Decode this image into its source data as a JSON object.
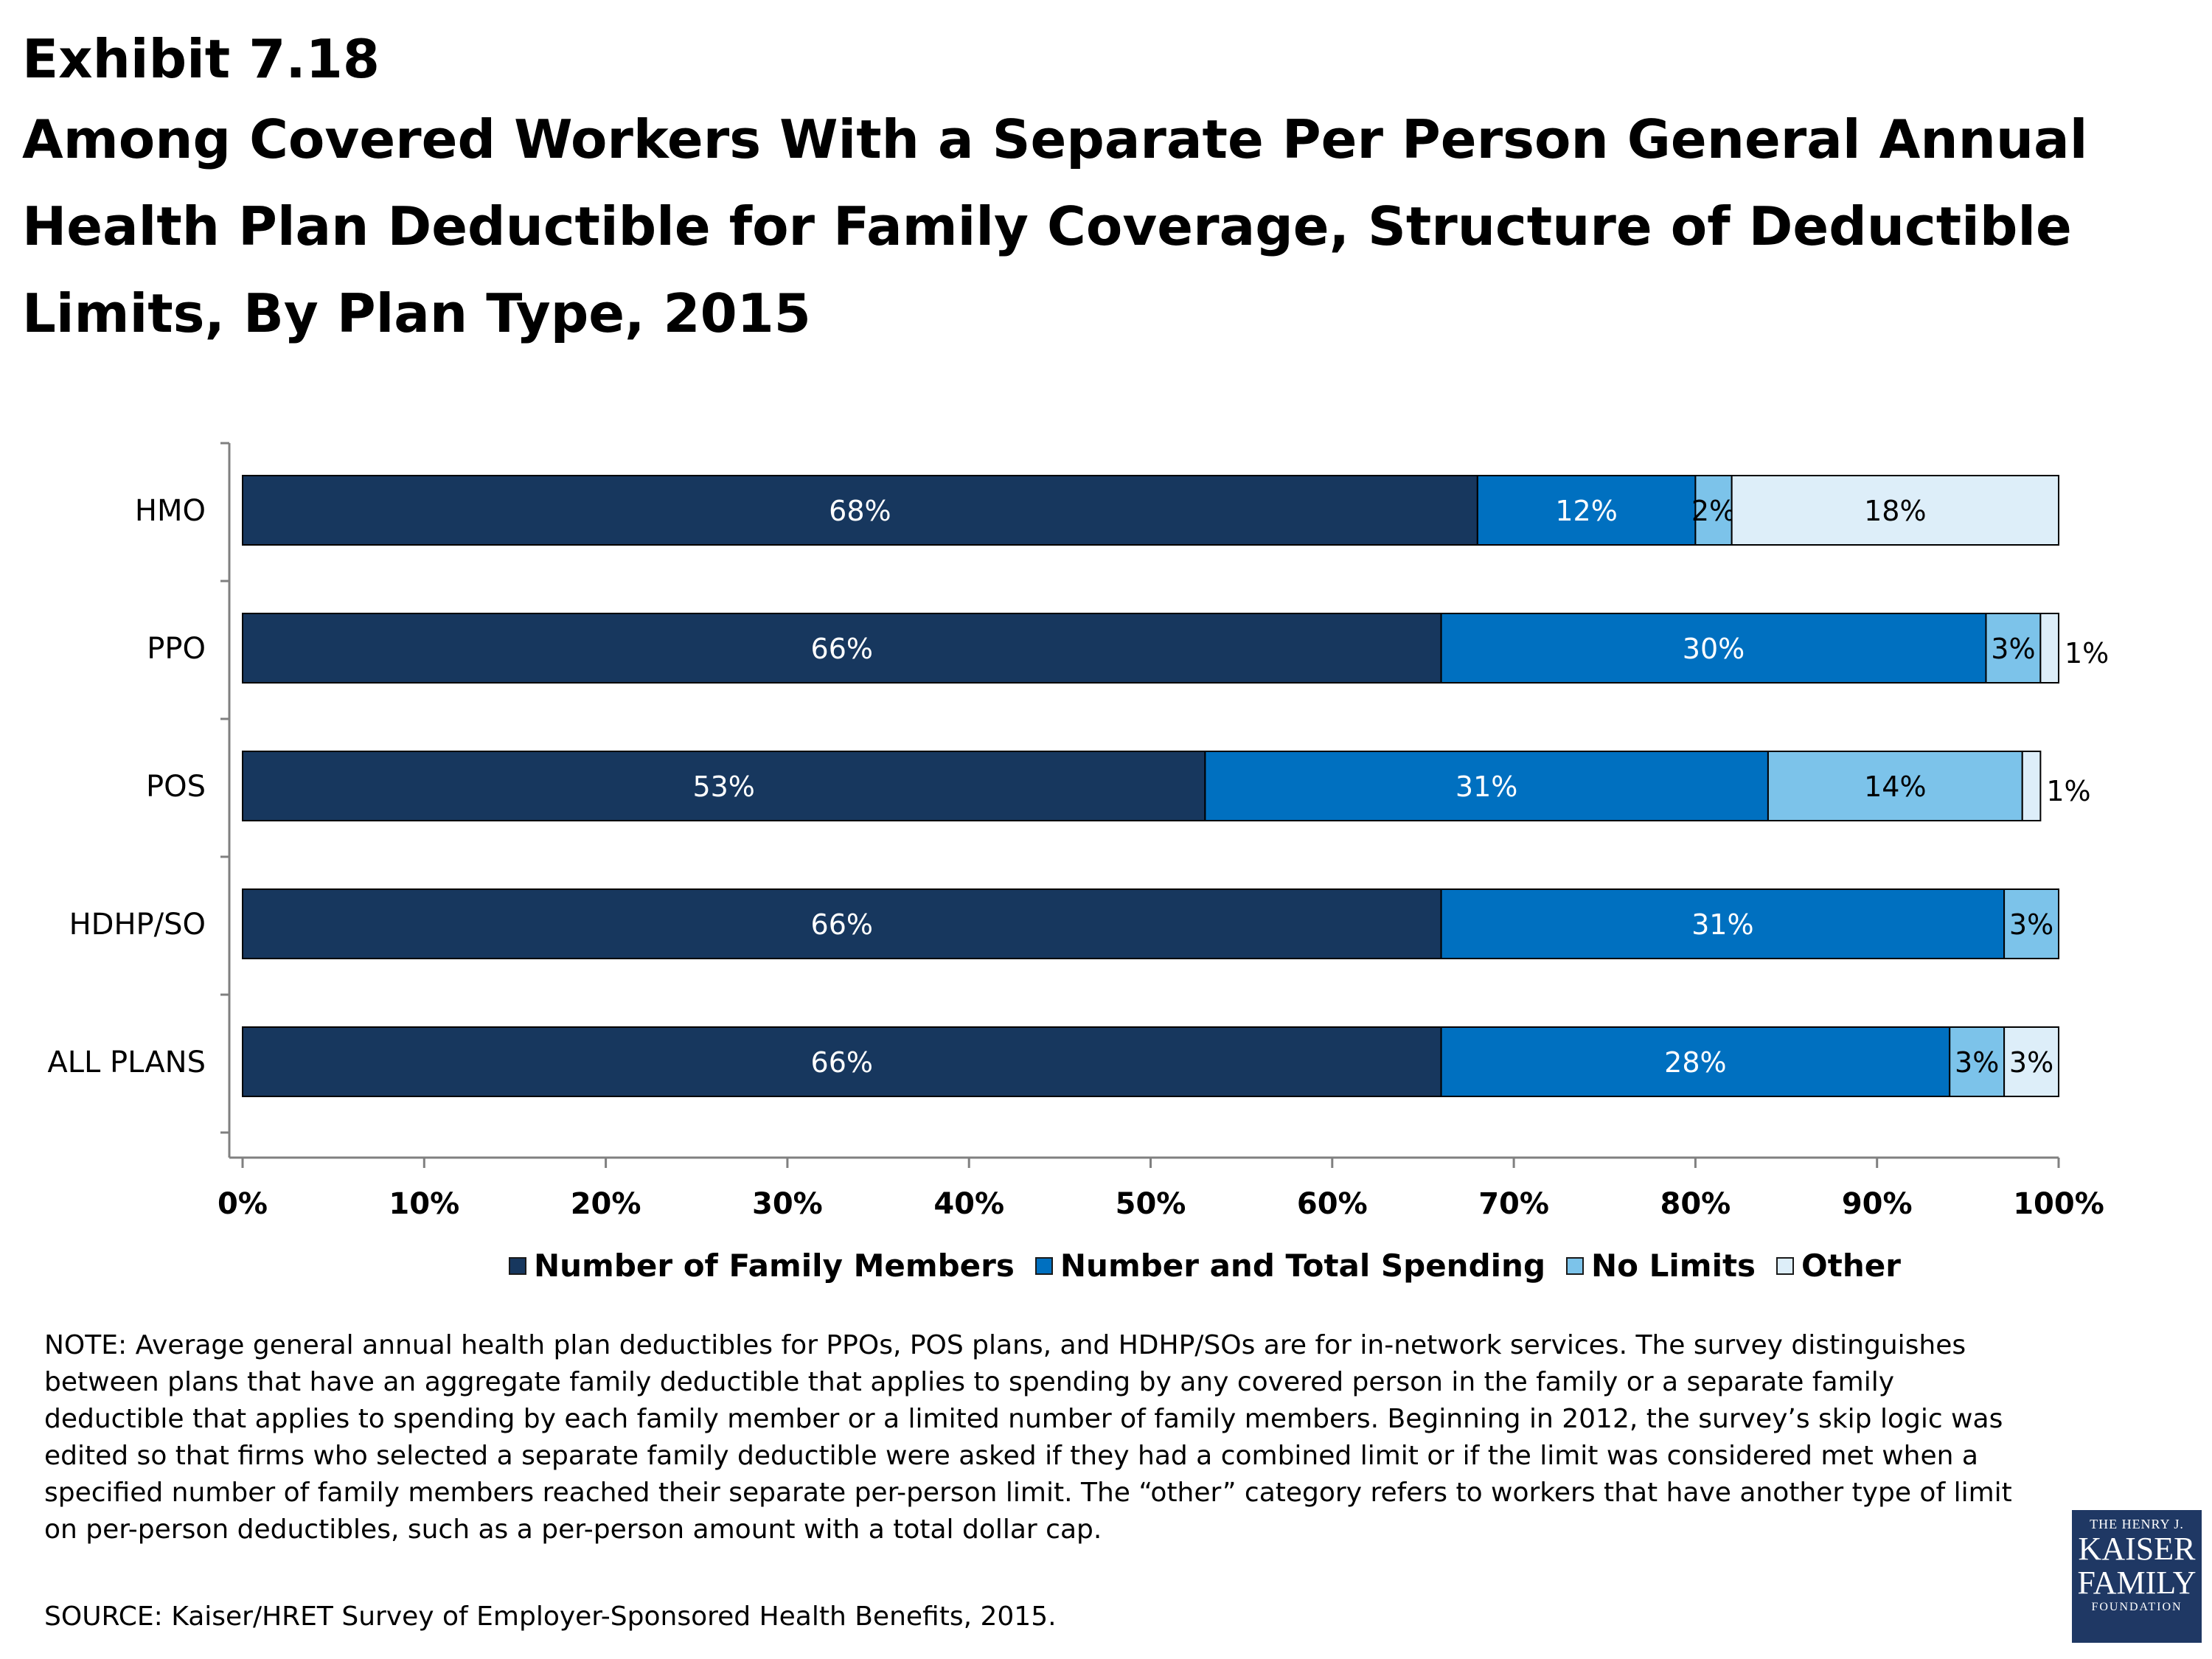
{
  "header": {
    "exhibit": "Exhibit 7.18",
    "title": "Among Covered Workers With a Separate Per Person General Annual Health Plan Deductible for Family Coverage, Structure of Deductible Limits, By Plan Type, 2015"
  },
  "chart_data": {
    "type": "bar",
    "orientation": "horizontal",
    "stacked": true,
    "categories": [
      "HMO",
      "PPO",
      "POS",
      "HDHP/SO",
      "ALL PLANS"
    ],
    "series": [
      {
        "name": "Number of Family Members",
        "values": [
          68,
          66,
          53,
          66,
          66
        ],
        "labels": [
          "68%",
          "66%",
          "53%",
          "66%",
          "66%"
        ],
        "color": "#17375e"
      },
      {
        "name": "Number and Total Spending",
        "values": [
          12,
          30,
          31,
          31,
          28
        ],
        "labels": [
          "12%",
          "30%",
          "31%",
          "31%",
          "28%"
        ],
        "color": "#0070c0"
      },
      {
        "name": "No Limits",
        "values": [
          2,
          3,
          14,
          3,
          3
        ],
        "labels": [
          "2%",
          "3%",
          "14%",
          "3%",
          "3%"
        ],
        "color": "#7cc3ea"
      },
      {
        "name": "Other",
        "values": [
          18,
          1,
          1,
          0,
          3
        ],
        "labels": [
          "18%",
          "1%",
          "1%",
          "",
          "3%"
        ],
        "color": "#ddeef9"
      }
    ],
    "xlim": [
      0,
      100
    ],
    "xticks": [
      "0%",
      "10%",
      "20%",
      "30%",
      "40%",
      "50%",
      "60%",
      "70%",
      "80%",
      "90%",
      "100%"
    ],
    "legend_position": "bottom",
    "grid": false
  },
  "note": "NOTE: Average general annual health plan deductibles for PPOs, POS plans, and HDHP/SOs are for in-network services. The survey distinguishes between plans that have an aggregate family deductible that applies to spending by any covered person in the family or a separate family deductible that applies to spending by each family member or a limited number of family members.  Beginning in 2012, the survey’s skip logic was edited so that firms who selected a separate family deductible were asked if they had a combined limit or if the limit was considered met when a specified number of family members reached their separate per-person limit. The “other” category refers to workers that have another type of limit on per-person deductibles, such as a per-person amount with a total dollar cap.",
  "source": "SOURCE:  Kaiser/HRET Survey of Employer-Sponsored Health Benefits, 2015.",
  "logo": {
    "line1": "THE HENRY J.",
    "line2": "KAISER",
    "line3": "FAMILY",
    "line4": "FOUNDATION"
  }
}
